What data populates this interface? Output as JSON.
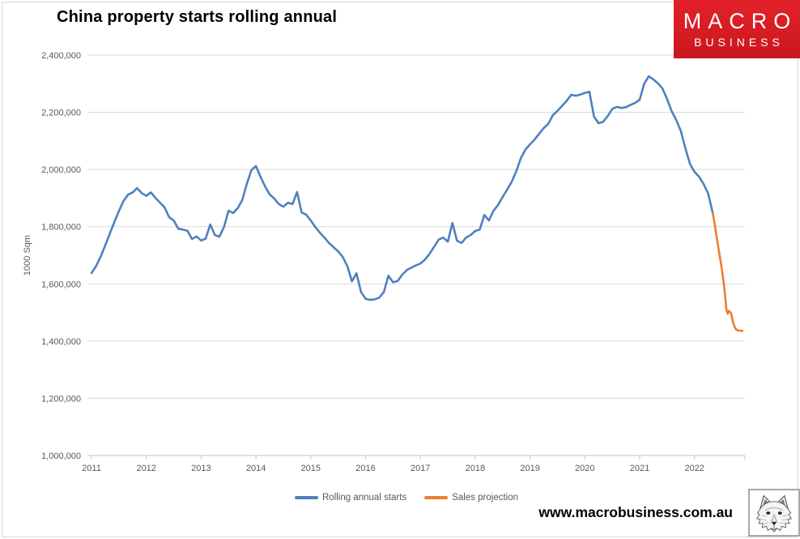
{
  "logo": {
    "line1": "MACRO",
    "line2": "BUSINESS",
    "bg_color": "#D7191F",
    "text_color": "#FFFFFF"
  },
  "footer": {
    "url_text": "www.macrobusiness.com.au",
    "logo_icon": "wolf-sketch"
  },
  "chart_data": {
    "type": "line",
    "title": "China property starts rolling annual",
    "ylabel": "1000 Sqm",
    "grid": "horizontal",
    "legend_position": "bottom",
    "x_axis": {
      "min": 2011,
      "max": 2022.92,
      "ticks": [
        2011,
        2012,
        2013,
        2014,
        2015,
        2016,
        2017,
        2018,
        2019,
        2020,
        2021,
        2022
      ],
      "tick_labels": [
        "2011",
        "2012",
        "2013",
        "2014",
        "2015",
        "2016",
        "2017",
        "2018",
        "2019",
        "2020",
        "2021",
        "2022"
      ]
    },
    "y_axis": {
      "min": 1000000,
      "max": 2400000,
      "ticks": [
        1000000,
        1200000,
        1400000,
        1600000,
        1800000,
        2000000,
        2200000,
        2400000
      ],
      "tick_labels": [
        "1,000,000",
        "1,200,000",
        "1,400,000",
        "1,600,000",
        "1,800,000",
        "2,000,000",
        "2,200,000",
        "2,400,000"
      ]
    },
    "series": [
      {
        "name": "Rolling annual starts",
        "color": "#4E81BD",
        "points": [
          [
            2011.0,
            1638000
          ],
          [
            2011.083,
            1662000
          ],
          [
            2011.167,
            1695000
          ],
          [
            2011.25,
            1734000
          ],
          [
            2011.333,
            1775000
          ],
          [
            2011.417,
            1816000
          ],
          [
            2011.5,
            1855000
          ],
          [
            2011.583,
            1890000
          ],
          [
            2011.667,
            1912000
          ],
          [
            2011.75,
            1920000
          ],
          [
            2011.833,
            1935000
          ],
          [
            2011.917,
            1917000
          ],
          [
            2012.0,
            1908000
          ],
          [
            2012.083,
            1920000
          ],
          [
            2012.167,
            1901000
          ],
          [
            2012.25,
            1884000
          ],
          [
            2012.333,
            1868000
          ],
          [
            2012.417,
            1833000
          ],
          [
            2012.5,
            1822000
          ],
          [
            2012.583,
            1793000
          ],
          [
            2012.667,
            1790000
          ],
          [
            2012.75,
            1786000
          ],
          [
            2012.833,
            1757000
          ],
          [
            2012.917,
            1766000
          ],
          [
            2013.0,
            1752000
          ],
          [
            2013.083,
            1758000
          ],
          [
            2013.167,
            1808000
          ],
          [
            2013.25,
            1771000
          ],
          [
            2013.333,
            1765000
          ],
          [
            2013.417,
            1799000
          ],
          [
            2013.5,
            1856000
          ],
          [
            2013.583,
            1848000
          ],
          [
            2013.667,
            1865000
          ],
          [
            2013.75,
            1893000
          ],
          [
            2013.833,
            1950000
          ],
          [
            2013.917,
            1998000
          ],
          [
            2014.0,
            2012000
          ],
          [
            2014.083,
            1975000
          ],
          [
            2014.167,
            1941000
          ],
          [
            2014.25,
            1913000
          ],
          [
            2014.333,
            1899000
          ],
          [
            2014.417,
            1879000
          ],
          [
            2014.5,
            1870000
          ],
          [
            2014.583,
            1884000
          ],
          [
            2014.667,
            1879000
          ],
          [
            2014.75,
            1921000
          ],
          [
            2014.833,
            1850000
          ],
          [
            2014.917,
            1842000
          ],
          [
            2015.0,
            1822000
          ],
          [
            2015.083,
            1799000
          ],
          [
            2015.167,
            1779000
          ],
          [
            2015.25,
            1762000
          ],
          [
            2015.333,
            1743000
          ],
          [
            2015.417,
            1728000
          ],
          [
            2015.5,
            1714000
          ],
          [
            2015.583,
            1694000
          ],
          [
            2015.667,
            1662000
          ],
          [
            2015.75,
            1609000
          ],
          [
            2015.833,
            1637000
          ],
          [
            2015.917,
            1572000
          ],
          [
            2016.0,
            1548000
          ],
          [
            2016.083,
            1544000
          ],
          [
            2016.167,
            1546000
          ],
          [
            2016.25,
            1552000
          ],
          [
            2016.333,
            1572000
          ],
          [
            2016.417,
            1629000
          ],
          [
            2016.5,
            1606000
          ],
          [
            2016.583,
            1610000
          ],
          [
            2016.667,
            1632000
          ],
          [
            2016.75,
            1648000
          ],
          [
            2016.833,
            1657000
          ],
          [
            2016.917,
            1665000
          ],
          [
            2017.0,
            1671000
          ],
          [
            2017.083,
            1685000
          ],
          [
            2017.167,
            1705000
          ],
          [
            2017.25,
            1730000
          ],
          [
            2017.333,
            1755000
          ],
          [
            2017.417,
            1762000
          ],
          [
            2017.5,
            1748000
          ],
          [
            2017.583,
            1813000
          ],
          [
            2017.667,
            1751000
          ],
          [
            2017.75,
            1743000
          ],
          [
            2017.833,
            1762000
          ],
          [
            2017.917,
            1771000
          ],
          [
            2018.0,
            1785000
          ],
          [
            2018.083,
            1790000
          ],
          [
            2018.167,
            1841000
          ],
          [
            2018.25,
            1822000
          ],
          [
            2018.333,
            1856000
          ],
          [
            2018.417,
            1876000
          ],
          [
            2018.5,
            1904000
          ],
          [
            2018.583,
            1930000
          ],
          [
            2018.667,
            1958000
          ],
          [
            2018.75,
            1995000
          ],
          [
            2018.833,
            2040000
          ],
          [
            2018.917,
            2070000
          ],
          [
            2019.0,
            2088000
          ],
          [
            2019.083,
            2105000
          ],
          [
            2019.167,
            2125000
          ],
          [
            2019.25,
            2145000
          ],
          [
            2019.333,
            2160000
          ],
          [
            2019.417,
            2190000
          ],
          [
            2019.5,
            2205000
          ],
          [
            2019.583,
            2222000
          ],
          [
            2019.667,
            2240000
          ],
          [
            2019.75,
            2261000
          ],
          [
            2019.833,
            2258000
          ],
          [
            2019.917,
            2262000
          ],
          [
            2020.0,
            2268000
          ],
          [
            2020.083,
            2272000
          ],
          [
            2020.167,
            2185000
          ],
          [
            2020.25,
            2162000
          ],
          [
            2020.333,
            2167000
          ],
          [
            2020.417,
            2187000
          ],
          [
            2020.5,
            2212000
          ],
          [
            2020.583,
            2219000
          ],
          [
            2020.667,
            2215000
          ],
          [
            2020.75,
            2218000
          ],
          [
            2020.833,
            2226000
          ],
          [
            2020.917,
            2233000
          ],
          [
            2021.0,
            2244000
          ],
          [
            2021.083,
            2300000
          ],
          [
            2021.167,
            2326000
          ],
          [
            2021.25,
            2315000
          ],
          [
            2021.333,
            2301000
          ],
          [
            2021.417,
            2283000
          ],
          [
            2021.5,
            2246000
          ],
          [
            2021.583,
            2204000
          ],
          [
            2021.667,
            2173000
          ],
          [
            2021.75,
            2135000
          ],
          [
            2021.833,
            2075000
          ],
          [
            2021.917,
            2020000
          ],
          [
            2022.0,
            1992000
          ],
          [
            2022.083,
            1975000
          ],
          [
            2022.167,
            1949000
          ],
          [
            2022.25,
            1916000
          ],
          [
            2022.333,
            1847000
          ]
        ]
      },
      {
        "name": "Sales projection",
        "color": "#ED7D31",
        "points": [
          [
            2022.333,
            1847000
          ],
          [
            2022.375,
            1800000
          ],
          [
            2022.417,
            1750000
          ],
          [
            2022.458,
            1700000
          ],
          [
            2022.5,
            1650000
          ],
          [
            2022.542,
            1590000
          ],
          [
            2022.583,
            1508000
          ],
          [
            2022.604,
            1496000
          ],
          [
            2022.625,
            1506000
          ],
          [
            2022.667,
            1498000
          ],
          [
            2022.708,
            1462000
          ],
          [
            2022.75,
            1443000
          ],
          [
            2022.792,
            1437000
          ],
          [
            2022.875,
            1436000
          ]
        ]
      }
    ]
  }
}
